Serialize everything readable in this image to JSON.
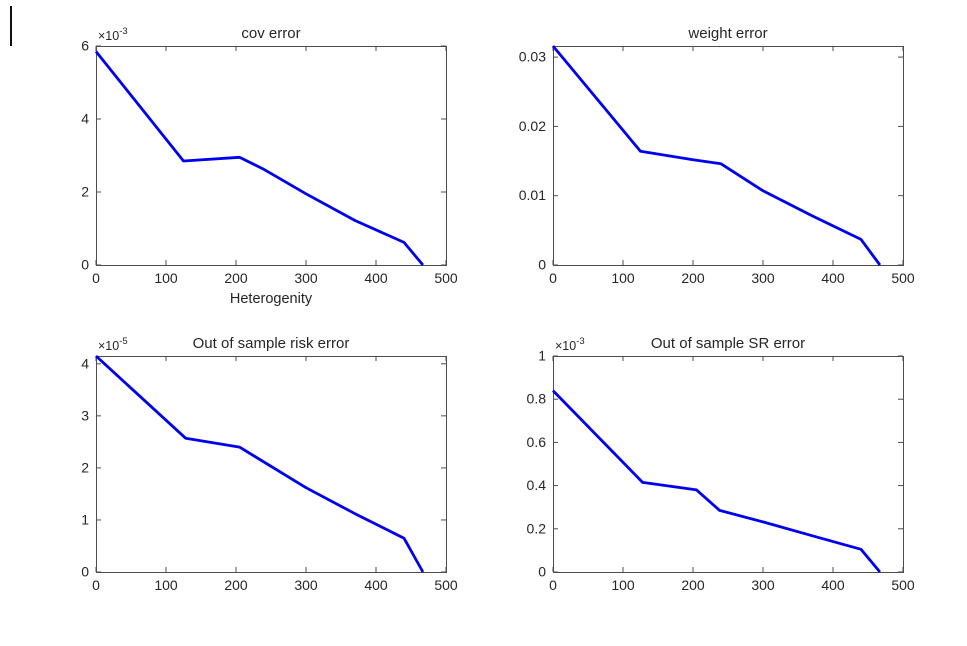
{
  "figure": {
    "background": "#ffffff",
    "style": {
      "line_color": "#0000f0",
      "axis_color": "#4d4d4d",
      "text_color": "#262626",
      "line_width": 2.8
    }
  },
  "chart_data": [
    {
      "type": "line",
      "title": "cov error",
      "xlabel": "Heterogenity",
      "ylabel": "",
      "y_scale_label": {
        "mantissa": "×10",
        "exponent": "-3"
      },
      "y_unit_multiplier": 0.001,
      "xlim": [
        0,
        500
      ],
      "ylim": [
        0,
        6
      ],
      "xticks": [
        0,
        100,
        200,
        300,
        400,
        500
      ],
      "yticks": [
        0,
        2,
        4,
        6
      ],
      "grid": false,
      "legend": null,
      "series": [
        {
          "name": "cov error",
          "x": [
            0,
            125,
            205,
            240,
            300,
            370,
            440,
            467
          ],
          "y": [
            5.85,
            2.85,
            2.95,
            2.62,
            1.95,
            1.22,
            0.62,
            0
          ]
        }
      ]
    },
    {
      "type": "line",
      "title": "weight error",
      "xlabel": "",
      "ylabel": "",
      "y_scale_label": null,
      "y_unit_multiplier": 1,
      "xlim": [
        0,
        500
      ],
      "ylim": [
        0,
        0.0316
      ],
      "xticks": [
        0,
        100,
        200,
        300,
        400,
        500
      ],
      "yticks": [
        0,
        0.01,
        0.02,
        0.03
      ],
      "grid": false,
      "legend": null,
      "series": [
        {
          "name": "weight error",
          "x": [
            0,
            125,
            200,
            240,
            300,
            370,
            440,
            467
          ],
          "y": [
            0.0316,
            0.0164,
            0.0152,
            0.0146,
            0.0107,
            0.0071,
            0.0037,
            0
          ]
        }
      ]
    },
    {
      "type": "line",
      "title": "Out of sample risk error",
      "xlabel": "",
      "ylabel": "",
      "y_scale_label": {
        "mantissa": "×10",
        "exponent": "-5"
      },
      "y_unit_multiplier": 1e-05,
      "xlim": [
        0,
        500
      ],
      "ylim": [
        0,
        4.15
      ],
      "xticks": [
        0,
        100,
        200,
        300,
        400,
        500
      ],
      "yticks": [
        0,
        1,
        2,
        3,
        4
      ],
      "grid": false,
      "legend": null,
      "series": [
        {
          "name": "out of sample risk error",
          "x": [
            0,
            128,
            205,
            300,
            370,
            440,
            467
          ],
          "y": [
            4.15,
            2.57,
            2.4,
            1.62,
            1.12,
            0.65,
            0
          ]
        }
      ]
    },
    {
      "type": "line",
      "title": "Out of sample SR error",
      "xlabel": "",
      "ylabel": "",
      "y_scale_label": {
        "mantissa": "×10",
        "exponent": "-3"
      },
      "y_unit_multiplier": 0.001,
      "xlim": [
        0,
        500
      ],
      "ylim": [
        0,
        1
      ],
      "xticks": [
        0,
        100,
        200,
        300,
        400,
        500
      ],
      "yticks": [
        0,
        0.2,
        0.4,
        0.6,
        0.8,
        1
      ],
      "grid": false,
      "legend": null,
      "series": [
        {
          "name": "out of sample SR error",
          "x": [
            0,
            128,
            205,
            238,
            300,
            370,
            440,
            467
          ],
          "y": [
            0.84,
            0.415,
            0.38,
            0.285,
            0.232,
            0.168,
            0.105,
            0
          ]
        }
      ]
    }
  ]
}
